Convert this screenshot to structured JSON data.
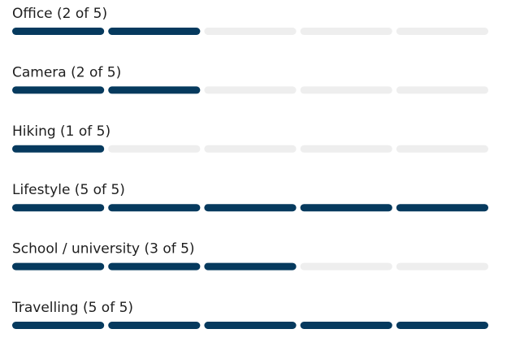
{
  "items": [
    {
      "label": "Office (2 of 5)",
      "value": 2,
      "max": 5
    },
    {
      "label": "Camera (2 of 5)",
      "value": 2,
      "max": 5
    },
    {
      "label": "Hiking (1 of 5)",
      "value": 1,
      "max": 5
    },
    {
      "label": "Lifestyle (5 of 5)",
      "value": 5,
      "max": 5
    },
    {
      "label": "School / university (3 of 5)",
      "value": 3,
      "max": 5
    },
    {
      "label": "Travelling (5 of 5)",
      "value": 5,
      "max": 5
    }
  ]
}
